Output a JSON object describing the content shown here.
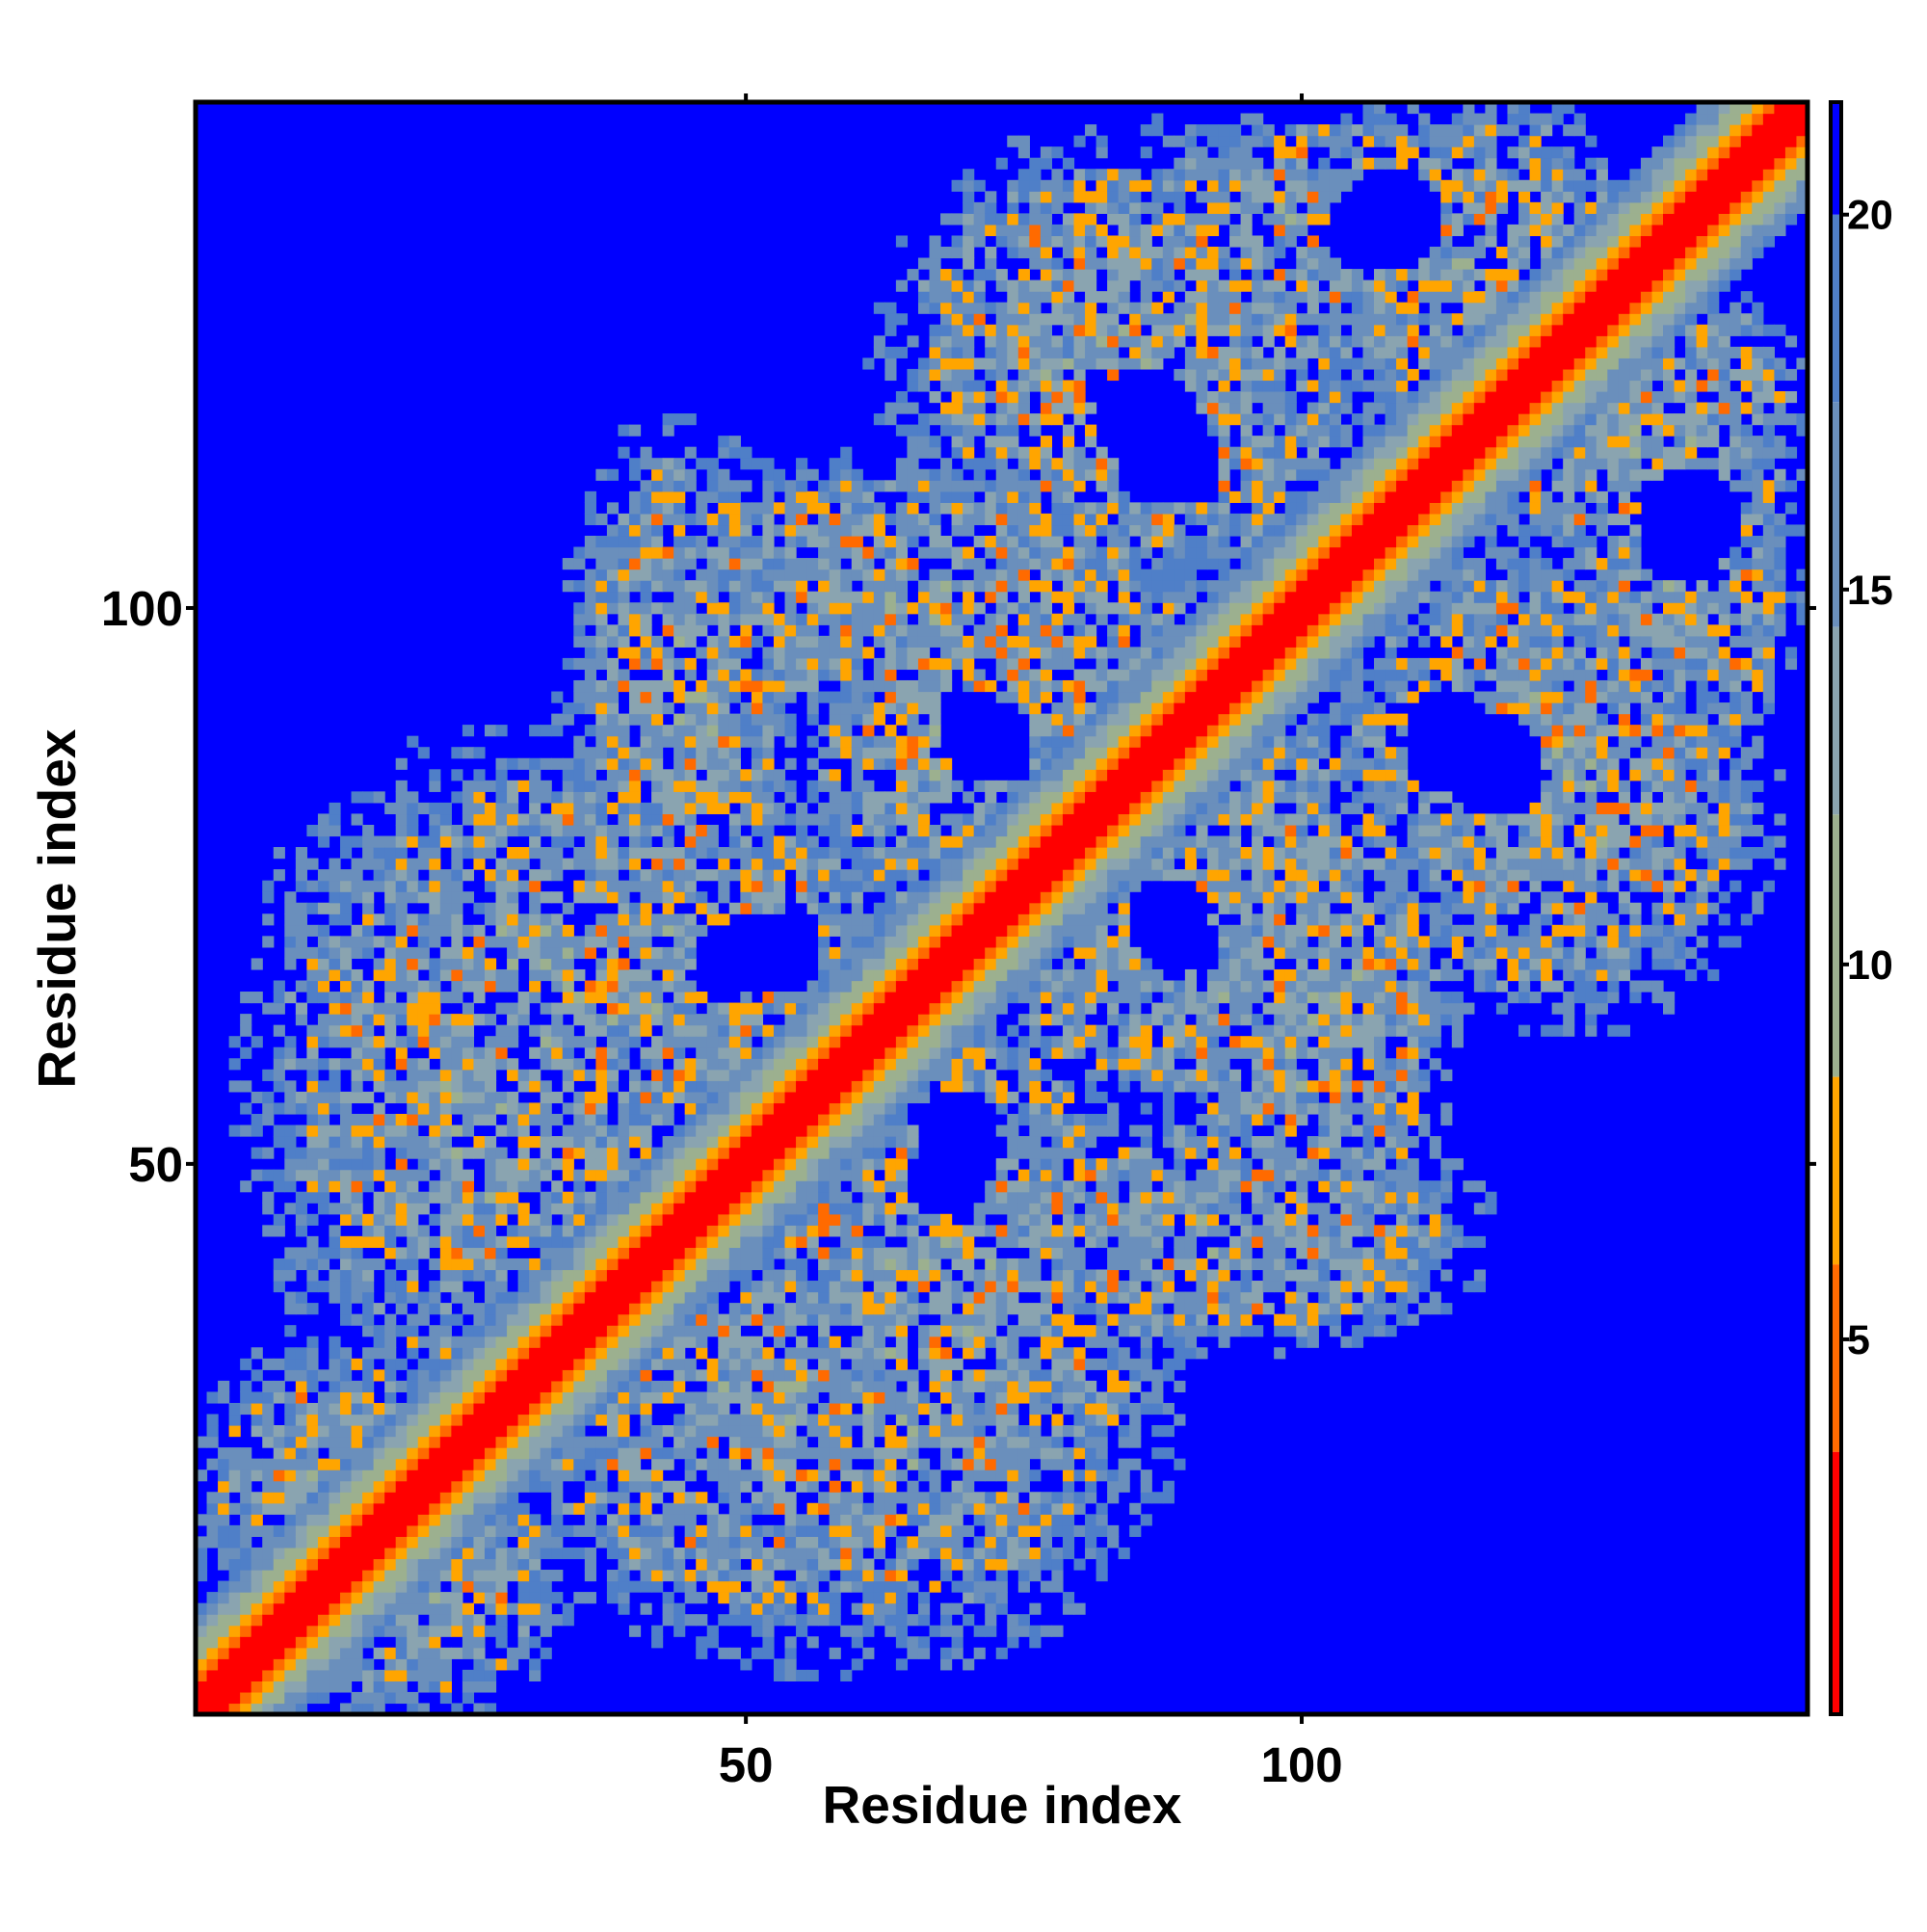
{
  "chart_data": {
    "type": "heatmap",
    "title": "",
    "xlabel": "Residue index",
    "ylabel": "Residue index",
    "n_residues": 145,
    "xlim": [
      1,
      145
    ],
    "ylim": [
      1,
      145
    ],
    "x_ticks": [
      50,
      100
    ],
    "y_ticks": [
      50,
      100
    ],
    "colorbar": {
      "ticks": [
        5,
        10,
        15,
        20
      ],
      "range": [
        0,
        21.5
      ],
      "colors": [
        {
          "max": 3.5,
          "color": "#ff0000"
        },
        {
          "max": 6.0,
          "color": "#ff6a00"
        },
        {
          "max": 8.5,
          "color": "#ffa500"
        },
        {
          "max": 12.0,
          "color": "#9cb08f"
        },
        {
          "max": 14.5,
          "color": "#8aa4b0"
        },
        {
          "max": 17.5,
          "color": "#6a8fbc"
        },
        {
          "max": 20.0,
          "color": "#4f7fc8"
        },
        {
          "max": 999,
          "color": "#0000ff"
        }
      ]
    },
    "contact_regions": [
      {
        "x": 57,
        "y": 27,
        "rx": 28,
        "ry": 20
      },
      {
        "x": 37,
        "y": 68,
        "rx": 28,
        "ry": 19
      },
      {
        "x": 93,
        "y": 44,
        "rx": 22,
        "ry": 10
      },
      {
        "x": 65,
        "y": 101,
        "rx": 26,
        "ry": 12
      },
      {
        "x": 88,
        "y": 67,
        "rx": 16,
        "ry": 11
      },
      {
        "x": 76,
        "y": 94,
        "rx": 12,
        "ry": 17
      },
      {
        "x": 122,
        "y": 86,
        "rx": 19,
        "ry": 20
      },
      {
        "x": 83,
        "y": 123,
        "rx": 19,
        "ry": 18
      },
      {
        "x": 120,
        "y": 127,
        "rx": 16,
        "ry": 12
      },
      {
        "x": 130,
        "y": 116,
        "rx": 15,
        "ry": 14
      },
      {
        "x": 104,
        "y": 136,
        "rx": 18,
        "ry": 8
      },
      {
        "x": 134,
        "y": 104,
        "rx": 10,
        "ry": 15
      },
      {
        "x": 20,
        "y": 13,
        "rx": 14,
        "ry": 11
      },
      {
        "x": 12,
        "y": 20,
        "rx": 11,
        "ry": 13
      }
    ],
    "empty_pockets": [
      {
        "x": 68,
        "y": 48,
        "rx": 4,
        "ry": 3
      },
      {
        "x": 52,
        "y": 69,
        "rx": 5,
        "ry": 4
      },
      {
        "x": 89,
        "y": 70,
        "rx": 4,
        "ry": 3
      },
      {
        "x": 72,
        "y": 88,
        "rx": 4,
        "ry": 4
      },
      {
        "x": 117,
        "y": 86,
        "rx": 5,
        "ry": 5
      },
      {
        "x": 88,
        "y": 113,
        "rx": 5,
        "ry": 4
      },
      {
        "x": 135,
        "y": 108,
        "rx": 5,
        "ry": 5
      },
      {
        "x": 106,
        "y": 134,
        "rx": 4,
        "ry": 4
      }
    ]
  }
}
